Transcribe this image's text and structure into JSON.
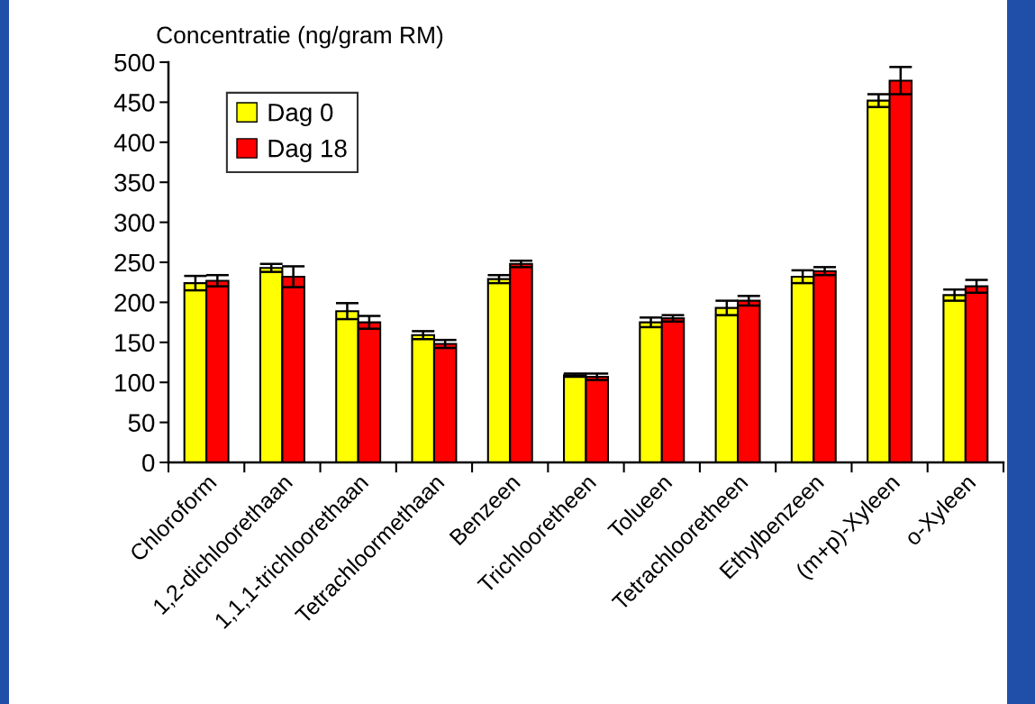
{
  "chart_data": {
    "type": "bar",
    "ylabel": "Concentratie (ng/gram RM)",
    "categories": [
      "Chloroform",
      "1,2-dichloorethaan",
      "1,1,1-trichloorethaan",
      "Tetrachloormethaan",
      "Benzeen",
      "Trichlooretheen",
      "Tolueen",
      "Tetrachlooretheen",
      "Ethylbenzeen",
      "(m+p)-Xyleen",
      "o-Xyleen"
    ],
    "series": [
      {
        "name": "Dag 0",
        "color": "#ffff00",
        "values": [
          224,
          243,
          189,
          159,
          229,
          109,
          175,
          193,
          232,
          452,
          209
        ],
        "errors": [
          9,
          5,
          10,
          5,
          5,
          2,
          6,
          9,
          8,
          8,
          7
        ]
      },
      {
        "name": "Dag 18",
        "color": "#ff0000",
        "values": [
          227,
          232,
          175,
          148,
          248,
          107,
          180,
          202,
          239,
          477,
          220
        ],
        "errors": [
          7,
          13,
          8,
          5,
          4,
          4,
          4,
          6,
          5,
          17,
          8
        ]
      }
    ],
    "ylim": [
      0,
      500
    ],
    "yticks": [
      0,
      50,
      100,
      150,
      200,
      250,
      300,
      350,
      400,
      450,
      500
    ],
    "grid": false,
    "legend": "top left"
  }
}
